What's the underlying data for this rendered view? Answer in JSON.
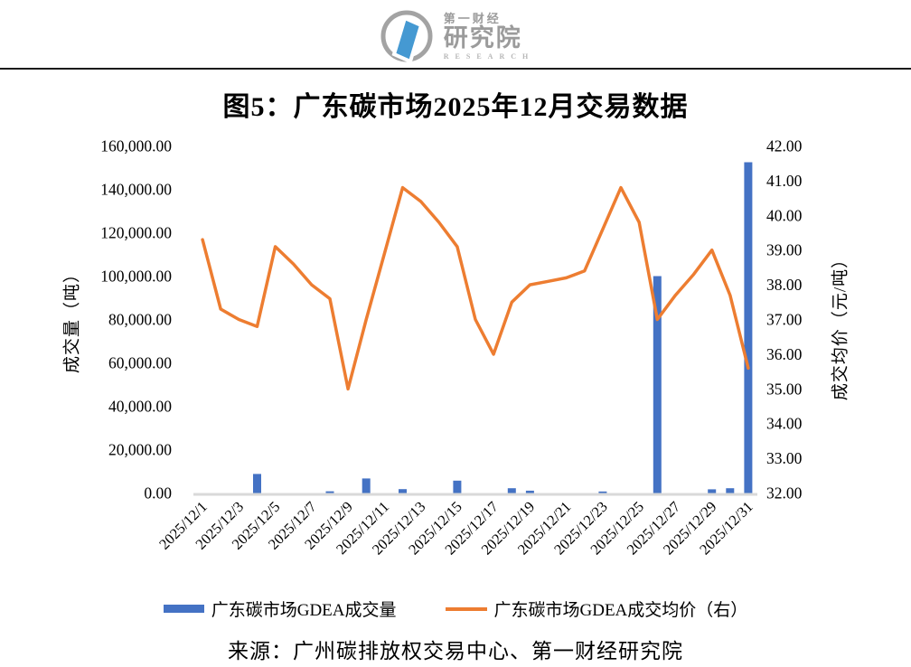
{
  "header": {
    "logo": {
      "brand_line1": "第一财经",
      "brand_line2": "研究院",
      "brand_line3": "RESEARCH",
      "ring_color": "#a3a3a3",
      "mark_color": "#4599d2"
    }
  },
  "chart": {
    "title": "图5：广东碳市场2025年12月交易数据",
    "left_axis_title": "成交量（吨）",
    "right_axis_title": "成交均价（元/吨）",
    "legend": [
      {
        "label": "广东碳市场GDEA成交量",
        "type": "bar",
        "color": "#4472C4"
      },
      {
        "label": "广东碳市场GDEA成交均价（右）",
        "type": "line",
        "color": "#ED7D31"
      }
    ],
    "source": "来源：广州碳排放权交易中心、第一财经研究院"
  },
  "chart_data": {
    "type": "bar",
    "subtype": "combo-bar-line-dual-axis",
    "title": "图5：广东碳市场2025年12月交易数据",
    "axis_line_color": "#d9d9d9",
    "grid": false,
    "legend_position": "bottom",
    "x": [
      "2025/12/1",
      "2025/12/2",
      "2025/12/3",
      "2025/12/4",
      "2025/12/5",
      "2025/12/6",
      "2025/12/7",
      "2025/12/8",
      "2025/12/9",
      "2025/12/10",
      "2025/12/11",
      "2025/12/12",
      "2025/12/13",
      "2025/12/14",
      "2025/12/15",
      "2025/12/16",
      "2025/12/17",
      "2025/12/18",
      "2025/12/19",
      "2025/12/20",
      "2025/12/21",
      "2025/12/22",
      "2025/12/23",
      "2025/12/24",
      "2025/12/25",
      "2025/12/26",
      "2025/12/27",
      "2025/12/28",
      "2025/12/29",
      "2025/12/30",
      "2025/12/31"
    ],
    "x_ticks": [
      {
        "i": 0,
        "label": "2025/12/1"
      },
      {
        "i": 2,
        "label": "2025/12/3"
      },
      {
        "i": 4,
        "label": "2025/12/5"
      },
      {
        "i": 6,
        "label": "2025/12/7"
      },
      {
        "i": 8,
        "label": "2025/12/9"
      },
      {
        "i": 10,
        "label": "2025/12/11"
      },
      {
        "i": 12,
        "label": "2025/12/13"
      },
      {
        "i": 14,
        "label": "2025/12/15"
      },
      {
        "i": 16,
        "label": "2025/12/17"
      },
      {
        "i": 18,
        "label": "2025/12/19"
      },
      {
        "i": 20,
        "label": "2025/12/21"
      },
      {
        "i": 22,
        "label": "2025/12/23"
      },
      {
        "i": 24,
        "label": "2025/12/25"
      },
      {
        "i": 26,
        "label": "2025/12/27"
      },
      {
        "i": 28,
        "label": "2025/12/29"
      },
      {
        "i": 30,
        "label": "2025/12/31"
      }
    ],
    "series": [
      {
        "name": "广东碳市场GDEA成交量",
        "type": "bar",
        "axis": "left",
        "color": "#4472C4",
        "values": [
          0,
          0,
          0,
          8800,
          0,
          0,
          0,
          800,
          0,
          6700,
          0,
          1800,
          0,
          0,
          5700,
          0,
          0,
          2200,
          1100,
          0,
          0,
          0,
          700,
          0,
          0,
          100000,
          0,
          0,
          1700,
          2200,
          152500
        ]
      },
      {
        "name": "广东碳市场GDEA成交均价（右）",
        "type": "line",
        "axis": "right",
        "color": "#ED7D31",
        "values": [
          39.3,
          37.3,
          37.0,
          36.8,
          39.1,
          38.6,
          38.0,
          37.6,
          35.0,
          37.0,
          38.9,
          40.8,
          40.4,
          39.8,
          39.1,
          37.0,
          36.0,
          37.5,
          38.0,
          38.1,
          38.2,
          38.4,
          39.6,
          40.8,
          39.8,
          37.0,
          37.7,
          38.3,
          39.0,
          37.7,
          35.6
        ]
      }
    ],
    "left_axis": {
      "title": "成交量（吨）",
      "min": 0,
      "max": 160000,
      "tick_values": [
        0,
        20000,
        40000,
        60000,
        80000,
        100000,
        120000,
        140000,
        160000
      ],
      "tick_labels": [
        "0.00",
        "20,000.00",
        "40,000.00",
        "60,000.00",
        "80,000.00",
        "100,000.00",
        "120,000.00",
        "140,000.00",
        "160,000.00"
      ]
    },
    "right_axis": {
      "title": "成交均价（元/吨）",
      "min": 32,
      "max": 42,
      "tick_values": [
        32,
        33,
        34,
        35,
        36,
        37,
        38,
        39,
        40,
        41,
        42
      ],
      "tick_labels": [
        "32.00",
        "33.00",
        "34.00",
        "35.00",
        "36.00",
        "37.00",
        "38.00",
        "39.00",
        "40.00",
        "41.00",
        "42.00"
      ]
    }
  }
}
